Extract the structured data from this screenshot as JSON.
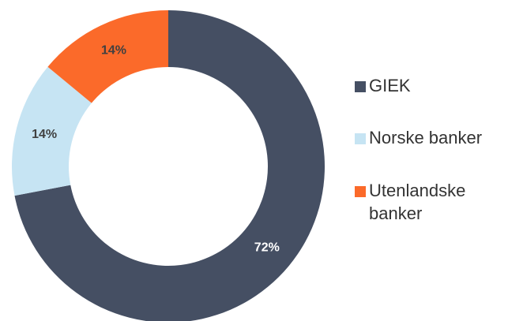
{
  "chart_data": {
    "type": "donut",
    "categories": [
      "GIEK",
      "Norske banker",
      "Utenlandske banker"
    ],
    "values": [
      72,
      14,
      14
    ],
    "value_labels": [
      "72%",
      "14%",
      "14%"
    ],
    "colors": [
      "#454f63",
      "#c6e4f3",
      "#fb6a2a"
    ]
  }
}
